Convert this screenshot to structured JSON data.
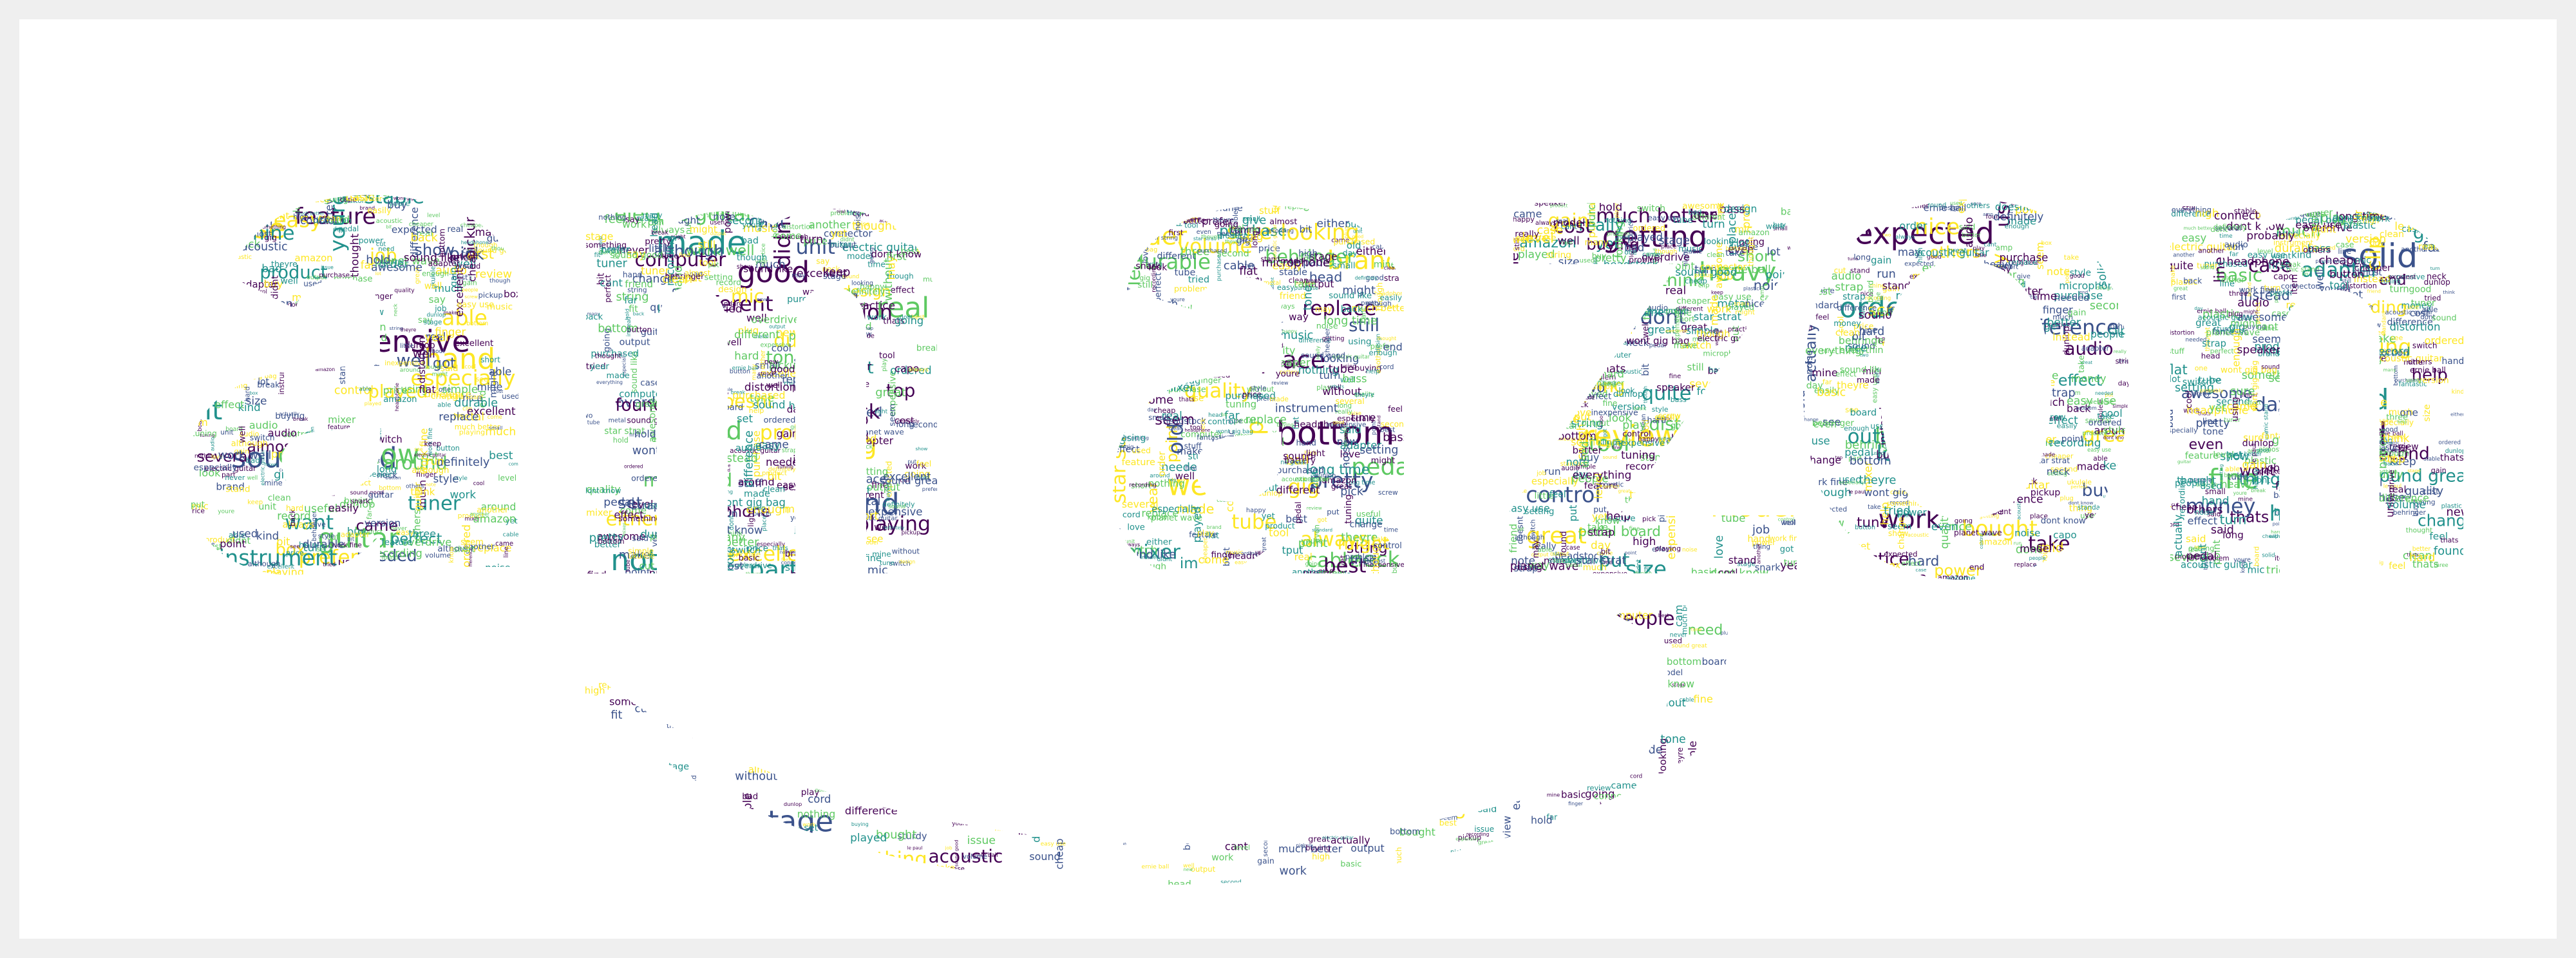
{
  "colors": {
    "background": "#efefef",
    "canvas": "#ffffff",
    "palette": [
      "#440154",
      "#3b528b",
      "#21918c",
      "#5ec962",
      "#fde725"
    ]
  },
  "words": [
    "guitar",
    "good",
    "pedal",
    "great",
    "work",
    "solid",
    "easy use",
    "bit",
    "kind",
    "brand",
    "much better",
    "headphone",
    "stand",
    "many",
    "feature",
    "part",
    "place",
    "heavy",
    "way",
    "day",
    "plastic",
    "case",
    "plug",
    "sure",
    "getting",
    "find",
    "record",
    "fantastic",
    "sound good",
    "made",
    "well",
    "snark",
    "expected",
    "cord",
    "stage",
    "dont know",
    "friend",
    "order",
    "model",
    "useful",
    "cool",
    "sound like",
    "acoustic guitar",
    "didnt",
    "pretty",
    "review",
    "metal",
    "fine",
    "item",
    "hand",
    "note",
    "amp",
    "dont",
    "ordered",
    "music",
    "better",
    "expensive",
    "real",
    "bottom",
    "sturdy",
    "long",
    "basic",
    "something",
    "first",
    "different",
    "still",
    "really",
    "take",
    "thats",
    "make",
    "needed",
    "capo",
    "year",
    "tool",
    "others",
    "theyre",
    "headstock",
    "especially",
    "button",
    "tube",
    "battery",
    "effect",
    "sound",
    "clean",
    "easy",
    "unit",
    "neck",
    "yet",
    "nice",
    "change",
    "may",
    "box",
    "doesnt",
    "purchase",
    "without",
    "tune",
    "happy",
    "everything",
    "played",
    "version",
    "string",
    "look",
    "used",
    "going",
    "acoustic",
    "tuner",
    "bass",
    "always",
    "put",
    "hard",
    "turn",
    "new",
    "issue",
    "problem",
    "durable",
    "quite",
    "speaker",
    "thing",
    "small",
    "perfect",
    "purchased",
    "quality",
    "distortion",
    "planet wave",
    "second",
    "though",
    "nothing",
    "design",
    "point",
    "one",
    "hold",
    "sound great",
    "easily",
    "pickup",
    "mic",
    "might",
    "fit",
    "buy",
    "help",
    "another",
    "pick",
    "work well",
    "behringer",
    "amazon",
    "probably",
    "awesome",
    "keep",
    "want",
    "set",
    "never",
    "level",
    "ukulele",
    "clip",
    "board",
    "prefer",
    "tone",
    "volume",
    "lot",
    "light",
    "far",
    "come",
    "know",
    "top",
    "cable",
    "control",
    "price",
    "give",
    "work",
    "job",
    "excellent",
    "looking",
    "pedal board",
    "screw",
    "end",
    "simple",
    "came",
    "overdrive",
    "im",
    "time",
    "practice",
    "instead",
    "definitely",
    "youre",
    "either",
    "star strat",
    "guitar string",
    "said",
    "line",
    "finger",
    "instrument",
    "microphone",
    "cheap",
    "tuning",
    "say",
    "high",
    "setting",
    "product",
    "using",
    "head",
    "noise",
    "switch",
    "even",
    "need",
    "around",
    "found",
    "seem",
    "size",
    "great",
    "much",
    "bad",
    "got",
    "thought",
    "mixer",
    "short",
    "three",
    "wont gig bag",
    "love",
    "enough",
    "back",
    "le paul",
    "think",
    "see",
    "recording",
    "inexpensive",
    "almost",
    "little",
    "best",
    "use",
    "actually",
    "strap",
    "standard",
    "well",
    "playing",
    "made",
    "tried",
    "bought",
    "money",
    "people",
    "feel",
    "electric guitar",
    "old",
    "two",
    "power",
    "adapter",
    "break",
    "several",
    "although",
    "ernie ball",
    "cost",
    "stuff",
    "play",
    "style",
    "mine",
    "dunlop",
    "replace",
    "buying",
    "difference",
    "cut",
    "cheaper",
    "show",
    "computer",
    "long time",
    "work fine",
    "output",
    "case",
    "run",
    "able",
    "mic stand",
    "gig",
    "gain",
    "audio",
    "flat",
    "connector",
    "stable",
    "cant"
  ]
}
